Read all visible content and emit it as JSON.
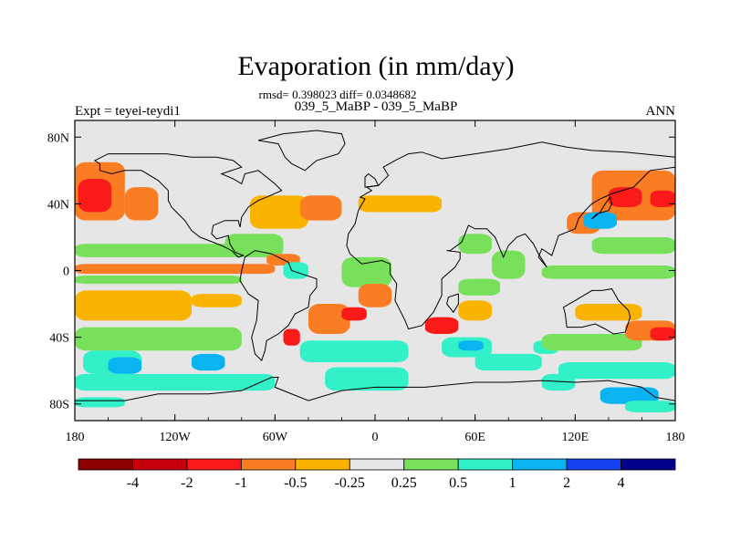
{
  "title": "Evaporation (in mm/day)",
  "stats_line": "rmsd= 0.398023 diff= 0.0348682",
  "subtitle": "039_5_MaBP - 039_5_MaBP",
  "left_label": "Expt = teyei-teydi1",
  "right_label": "ANN",
  "map": {
    "lon_range": [
      -180,
      180
    ],
    "lat_range": [
      -90,
      90
    ],
    "land_color": "#e6e6e6",
    "x_ticks": [
      {
        "lon": -180,
        "label": "180"
      },
      {
        "lon": -120,
        "label": "120W"
      },
      {
        "lon": -60,
        "label": "60W"
      },
      {
        "lon": 0,
        "label": "0"
      },
      {
        "lon": 60,
        "label": "60E"
      },
      {
        "lon": 120,
        "label": "120E"
      },
      {
        "lon": 180,
        "label": "180"
      }
    ],
    "y_ticks": [
      {
        "lat": 80,
        "label": "80N"
      },
      {
        "lat": 40,
        "label": "40N"
      },
      {
        "lat": 0,
        "label": "0"
      },
      {
        "lat": -40,
        "label": "40S"
      },
      {
        "lat": -80,
        "label": "80S"
      }
    ],
    "regions": [
      {
        "lon": [
          -180,
          -150
        ],
        "lat": [
          30,
          65
        ],
        "bin": 3
      },
      {
        "lon": [
          -178,
          -158
        ],
        "lat": [
          35,
          55
        ],
        "bin": 2
      },
      {
        "lon": [
          -150,
          -130
        ],
        "lat": [
          30,
          50
        ],
        "bin": 3
      },
      {
        "lon": [
          -180,
          -100
        ],
        "lat": [
          22,
          30
        ],
        "bin": 5
      },
      {
        "lon": [
          -180,
          -60
        ],
        "lat": [
          -2,
          4
        ],
        "bin": 3
      },
      {
        "lon": [
          -180,
          -80
        ],
        "lat": [
          8,
          16
        ],
        "bin": 6
      },
      {
        "lon": [
          -180,
          -80
        ],
        "lat": [
          -8,
          -3
        ],
        "bin": 6
      },
      {
        "lon": [
          -180,
          -110
        ],
        "lat": [
          -30,
          -12
        ],
        "bin": 4
      },
      {
        "lon": [
          -110,
          -80
        ],
        "lat": [
          -22,
          -14
        ],
        "bin": 4
      },
      {
        "lon": [
          -180,
          -80
        ],
        "lat": [
          -48,
          -34
        ],
        "bin": 6
      },
      {
        "lon": [
          -175,
          -140
        ],
        "lat": [
          -62,
          -48
        ],
        "bin": 7
      },
      {
        "lon": [
          -160,
          -140
        ],
        "lat": [
          -62,
          -52
        ],
        "bin": 8
      },
      {
        "lon": [
          -110,
          -90
        ],
        "lat": [
          -60,
          -50
        ],
        "bin": 8
      },
      {
        "lon": [
          -180,
          -60
        ],
        "lat": [
          -72,
          -62
        ],
        "bin": 7
      },
      {
        "lon": [
          -180,
          -150
        ],
        "lat": [
          -82,
          -76
        ],
        "bin": 7
      },
      {
        "lon": [
          -75,
          -40
        ],
        "lat": [
          25,
          45
        ],
        "bin": 4
      },
      {
        "lon": [
          -45,
          -20
        ],
        "lat": [
          30,
          45
        ],
        "bin": 3
      },
      {
        "lon": [
          -90,
          -55
        ],
        "lat": [
          8,
          22
        ],
        "bin": 6
      },
      {
        "lon": [
          -65,
          -45
        ],
        "lat": [
          3,
          10
        ],
        "bin": 3
      },
      {
        "lon": [
          -55,
          -40
        ],
        "lat": [
          -5,
          5
        ],
        "bin": 7
      },
      {
        "lon": [
          -20,
          10
        ],
        "lat": [
          -10,
          8
        ],
        "bin": 6
      },
      {
        "lon": [
          -10,
          10
        ],
        "lat": [
          -22,
          -8
        ],
        "bin": 3
      },
      {
        "lon": [
          -40,
          -15
        ],
        "lat": [
          -38,
          -20
        ],
        "bin": 3
      },
      {
        "lon": [
          -20,
          -5
        ],
        "lat": [
          -30,
          -22
        ],
        "bin": 2
      },
      {
        "lon": [
          -45,
          20
        ],
        "lat": [
          -55,
          -42
        ],
        "bin": 7
      },
      {
        "lon": [
          -55,
          -45
        ],
        "lat": [
          -45,
          -35
        ],
        "bin": 2
      },
      {
        "lon": [
          -30,
          20
        ],
        "lat": [
          -72,
          -58
        ],
        "bin": 7
      },
      {
        "lon": [
          -10,
          40
        ],
        "lat": [
          35,
          45
        ],
        "bin": 4
      },
      {
        "lon": [
          50,
          70
        ],
        "lat": [
          10,
          22
        ],
        "bin": 6
      },
      {
        "lon": [
          70,
          90
        ],
        "lat": [
          -5,
          12
        ],
        "bin": 6
      },
      {
        "lon": [
          50,
          75
        ],
        "lat": [
          -15,
          -5
        ],
        "bin": 6
      },
      {
        "lon": [
          30,
          50
        ],
        "lat": [
          -38,
          -28
        ],
        "bin": 2
      },
      {
        "lon": [
          50,
          70
        ],
        "lat": [
          -30,
          -18
        ],
        "bin": 4
      },
      {
        "lon": [
          40,
          70
        ],
        "lat": [
          -52,
          -40
        ],
        "bin": 7
      },
      {
        "lon": [
          50,
          65
        ],
        "lat": [
          -48,
          -42
        ],
        "bin": 8
      },
      {
        "lon": [
          60,
          100
        ],
        "lat": [
          -60,
          -50
        ],
        "bin": 7
      },
      {
        "lon": [
          95,
          110
        ],
        "lat": [
          -50,
          -42
        ],
        "bin": 7
      },
      {
        "lon": [
          120,
          160
        ],
        "lat": [
          -30,
          -20
        ],
        "bin": 4
      },
      {
        "lon": [
          100,
          160
        ],
        "lat": [
          -48,
          -38
        ],
        "bin": 6
      },
      {
        "lon": [
          150,
          180
        ],
        "lat": [
          -42,
          -30
        ],
        "bin": 3
      },
      {
        "lon": [
          165,
          180
        ],
        "lat": [
          -42,
          -34
        ],
        "bin": 2
      },
      {
        "lon": [
          110,
          180
        ],
        "lat": [
          -65,
          -55
        ],
        "bin": 7
      },
      {
        "lon": [
          100,
          120
        ],
        "lat": [
          -72,
          -62
        ],
        "bin": 7
      },
      {
        "lon": [
          135,
          170
        ],
        "lat": [
          -80,
          -70
        ],
        "bin": 8
      },
      {
        "lon": [
          150,
          180
        ],
        "lat": [
          -85,
          -78
        ],
        "bin": 7
      },
      {
        "lon": [
          130,
          180
        ],
        "lat": [
          30,
          60
        ],
        "bin": 3
      },
      {
        "lon": [
          140,
          160
        ],
        "lat": [
          38,
          50
        ],
        "bin": 2
      },
      {
        "lon": [
          165,
          180
        ],
        "lat": [
          38,
          48
        ],
        "bin": 2
      },
      {
        "lon": [
          115,
          135
        ],
        "lat": [
          22,
          35
        ],
        "bin": 3
      },
      {
        "lon": [
          125,
          145
        ],
        "lat": [
          25,
          35
        ],
        "bin": 8
      },
      {
        "lon": [
          130,
          180
        ],
        "lat": [
          10,
          20
        ],
        "bin": 6
      },
      {
        "lon": [
          100,
          180
        ],
        "lat": [
          -5,
          3
        ],
        "bin": 6
      }
    ],
    "contours": [
      [
        [
          -168,
          66
        ],
        [
          -160,
          70
        ],
        [
          -140,
          70
        ],
        [
          -125,
          70
        ],
        [
          -110,
          68
        ],
        [
          -95,
          68
        ],
        [
          -85,
          66
        ],
        [
          -80,
          62
        ],
        [
          -92,
          58
        ],
        [
          -85,
          55
        ],
        [
          -80,
          52
        ],
        [
          -78,
          58
        ],
        [
          -70,
          60
        ],
        [
          -65,
          56
        ],
        [
          -60,
          52
        ],
        [
          -56,
          48
        ],
        [
          -65,
          44
        ],
        [
          -70,
          42
        ],
        [
          -76,
          38
        ],
        [
          -80,
          32
        ],
        [
          -81,
          26
        ],
        [
          -82,
          30
        ],
        [
          -90,
          30
        ],
        [
          -97,
          27
        ],
        [
          -98,
          22
        ],
        [
          -95,
          19
        ],
        [
          -88,
          21
        ],
        [
          -87,
          16
        ],
        [
          -84,
          11
        ],
        [
          -79,
          9
        ],
        [
          -82,
          8
        ],
        [
          -86,
          12
        ],
        [
          -92,
          15
        ],
        [
          -105,
          20
        ],
        [
          -110,
          24
        ],
        [
          -114,
          30
        ],
        [
          -118,
          34
        ],
        [
          -122,
          38
        ],
        [
          -124,
          42
        ],
        [
          -124,
          48
        ],
        [
          -130,
          54
        ],
        [
          -140,
          60
        ],
        [
          -150,
          60
        ],
        [
          -158,
          58
        ],
        [
          -165,
          60
        ],
        [
          -165,
          64
        ],
        [
          -168,
          66
        ]
      ],
      [
        [
          -55,
          82
        ],
        [
          -35,
          84
        ],
        [
          -20,
          82
        ],
        [
          -18,
          76
        ],
        [
          -22,
          70
        ],
        [
          -35,
          66
        ],
        [
          -42,
          60
        ],
        [
          -50,
          64
        ],
        [
          -54,
          68
        ],
        [
          -58,
          76
        ],
        [
          -70,
          78
        ],
        [
          -55,
          82
        ]
      ],
      [
        [
          -78,
          8
        ],
        [
          -72,
          12
        ],
        [
          -62,
          10
        ],
        [
          -52,
          5
        ],
        [
          -50,
          0
        ],
        [
          -44,
          -2
        ],
        [
          -35,
          -5
        ],
        [
          -35,
          -10
        ],
        [
          -39,
          -15
        ],
        [
          -40,
          -22
        ],
        [
          -48,
          -26
        ],
        [
          -52,
          -33
        ],
        [
          -58,
          -38
        ],
        [
          -65,
          -42
        ],
        [
          -66,
          -48
        ],
        [
          -68,
          -54
        ],
        [
          -72,
          -50
        ],
        [
          -74,
          -40
        ],
        [
          -71,
          -30
        ],
        [
          -70,
          -18
        ],
        [
          -76,
          -14
        ],
        [
          -81,
          -6
        ],
        [
          -80,
          0
        ],
        [
          -78,
          8
        ]
      ],
      [
        [
          -10,
          36
        ],
        [
          -6,
          43
        ],
        [
          -9,
          44
        ],
        [
          -2,
          48
        ],
        [
          -5,
          50
        ],
        [
          2,
          51
        ],
        [
          5,
          54
        ],
        [
          8,
          57
        ],
        [
          5,
          62
        ],
        [
          12,
          66
        ],
        [
          20,
          70
        ],
        [
          28,
          71
        ],
        [
          40,
          67
        ],
        [
          60,
          70
        ],
        [
          80,
          73
        ],
        [
          100,
          77
        ],
        [
          115,
          74
        ],
        [
          130,
          72
        ],
        [
          150,
          71
        ],
        [
          170,
          69
        ],
        [
          180,
          68
        ],
        [
          180,
          62
        ],
        [
          165,
          60
        ],
        [
          160,
          55
        ],
        [
          155,
          50
        ],
        [
          142,
          46
        ],
        [
          135,
          43
        ],
        [
          130,
          40
        ],
        [
          126,
          36
        ],
        [
          122,
          31
        ],
        [
          120,
          25
        ],
        [
          110,
          21
        ],
        [
          108,
          15
        ],
        [
          106,
          9
        ],
        [
          100,
          13
        ],
        [
          98,
          8
        ],
        [
          103,
          2
        ],
        [
          98,
          10
        ],
        [
          95,
          16
        ],
        [
          90,
          22
        ],
        [
          85,
          20
        ],
        [
          80,
          15
        ],
        [
          77,
          8
        ],
        [
          72,
          20
        ],
        [
          67,
          25
        ],
        [
          60,
          25
        ],
        [
          56,
          27
        ],
        [
          52,
          17
        ],
        [
          45,
          12
        ],
        [
          43,
          12
        ],
        [
          51,
          11
        ],
        [
          51,
          7
        ],
        [
          48,
          2
        ],
        [
          40,
          -5
        ],
        [
          40,
          -15
        ],
        [
          35,
          -25
        ],
        [
          28,
          -33
        ],
        [
          20,
          -35
        ],
        [
          18,
          -30
        ],
        [
          12,
          -18
        ],
        [
          13,
          -8
        ],
        [
          9,
          -2
        ],
        [
          9,
          4
        ],
        [
          4,
          6
        ],
        [
          -8,
          4
        ],
        [
          -15,
          10
        ],
        [
          -17,
          15
        ],
        [
          -16,
          22
        ],
        [
          -12,
          28
        ],
        [
          -10,
          36
        ]
      ],
      [
        [
          44,
          -16
        ],
        [
          50,
          -14
        ],
        [
          50,
          -20
        ],
        [
          47,
          -25
        ],
        [
          43,
          -20
        ],
        [
          44,
          -16
        ]
      ],
      [
        [
          113,
          -22
        ],
        [
          114,
          -26
        ],
        [
          115,
          -34
        ],
        [
          124,
          -34
        ],
        [
          132,
          -32
        ],
        [
          138,
          -35
        ],
        [
          143,
          -38
        ],
        [
          150,
          -37
        ],
        [
          153,
          -28
        ],
        [
          152,
          -24
        ],
        [
          146,
          -18
        ],
        [
          142,
          -11
        ],
        [
          136,
          -12
        ],
        [
          130,
          -12
        ],
        [
          125,
          -15
        ],
        [
          120,
          -18
        ],
        [
          113,
          -22
        ]
      ],
      [
        [
          -6,
          50
        ],
        [
          2,
          51
        ],
        [
          0,
          55
        ],
        [
          -4,
          58
        ],
        [
          -6,
          56
        ],
        [
          -6,
          50
        ]
      ],
      [
        [
          130,
          31
        ],
        [
          133,
          34
        ],
        [
          140,
          36
        ],
        [
          142,
          40
        ],
        [
          141,
          44
        ],
        [
          138,
          40
        ],
        [
          135,
          35
        ],
        [
          130,
          31
        ]
      ],
      [
        [
          -180,
          -78
        ],
        [
          -150,
          -78
        ],
        [
          -130,
          -74
        ],
        [
          -100,
          -74
        ],
        [
          -80,
          -72
        ],
        [
          -62,
          -64
        ],
        [
          -58,
          -64
        ],
        [
          -60,
          -70
        ],
        [
          -40,
          -78
        ],
        [
          -20,
          -72
        ],
        [
          0,
          -70
        ],
        [
          30,
          -70
        ],
        [
          60,
          -67
        ],
        [
          80,
          -67
        ],
        [
          100,
          -66
        ],
        [
          120,
          -67
        ],
        [
          140,
          -66
        ],
        [
          160,
          -70
        ],
        [
          168,
          -76
        ],
        [
          180,
          -78
        ],
        [
          180,
          -90
        ],
        [
          -180,
          -90
        ],
        [
          -180,
          -78
        ]
      ]
    ]
  },
  "colorbar": {
    "colors": [
      "#8c0000",
      "#c8000c",
      "#fa1a1a",
      "#fa7d23",
      "#fab400",
      "#e6e6e6",
      "#78e05a",
      "#32f0c8",
      "#0ab4f0",
      "#1440f0",
      "#00008c"
    ],
    "labels": [
      "-4",
      "-2",
      "-1",
      "-0.5",
      "-0.25",
      "0.25",
      "0.5",
      "1",
      "2",
      "4"
    ]
  }
}
